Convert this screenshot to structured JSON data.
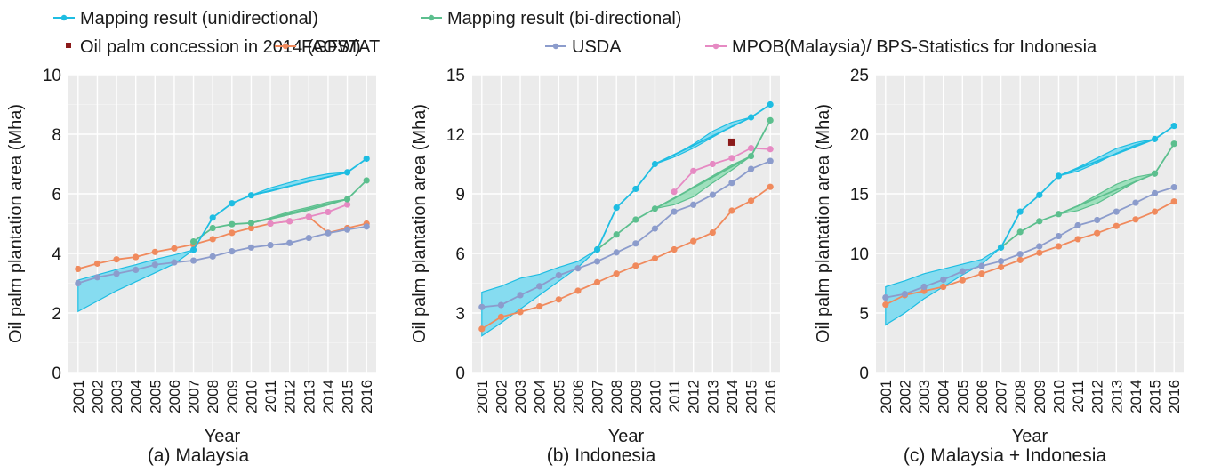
{
  "legend": {
    "items": [
      {
        "key": "map_uni",
        "label": "Mapping result (unidirectional)",
        "marker": "line",
        "color": "#1ebde2"
      },
      {
        "key": "map_bi",
        "label": "Mapping result (bi-directional)",
        "marker": "line",
        "color": "#5cbf8e"
      },
      {
        "key": "gfw",
        "label": "Oil palm concession in 2014 (GFW)",
        "marker": "square",
        "color": "#8b1a1a"
      },
      {
        "key": "faostat",
        "label": "FAOSTAT",
        "marker": "line",
        "color": "#f08a5d"
      },
      {
        "key": "usda",
        "label": "USDA",
        "marker": "line",
        "color": "#8c9ccc"
      },
      {
        "key": "mpob",
        "label": "MPOB(Malaysia)/ BPS-Statistics for Indonesia",
        "marker": "line",
        "color": "#e68ac3"
      }
    ]
  },
  "chart_data": [
    {
      "type": "line",
      "caption": "(a) Malaysia",
      "xlabel": "Year",
      "ylabel": "Oil palm plantation area (Mha)",
      "ylim": [
        0,
        10
      ],
      "yticks": [
        0,
        2,
        4,
        6,
        8,
        10
      ],
      "x": [
        "2001",
        "2002",
        "2003",
        "2004",
        "2005",
        "2006",
        "2007",
        "2008",
        "2009",
        "2010",
        "2011",
        "2012",
        "2013",
        "2014",
        "2015",
        "2016"
      ],
      "grid": true,
      "band_color": "#86dcf0",
      "band_bi_color": "#9fe0bd",
      "bands": [
        {
          "series": "map_uni",
          "x_from": "2001",
          "x_to": "2007",
          "upper": [
            3.1,
            3.28,
            3.46,
            3.62,
            3.8,
            3.95,
            4.12
          ],
          "lower": [
            2.05,
            2.4,
            2.75,
            3.05,
            3.35,
            3.65,
            4.12
          ]
        },
        {
          "series": "map_uni",
          "x_from": "2010",
          "x_to": "2015",
          "upper": [
            5.95,
            6.2,
            6.38,
            6.55,
            6.67,
            6.72
          ],
          "lower": [
            5.95,
            6.08,
            6.25,
            6.42,
            6.57,
            6.72
          ]
        },
        {
          "series": "map_bi",
          "x_from": "2010",
          "x_to": "2015",
          "upper": [
            5.02,
            5.2,
            5.4,
            5.55,
            5.72,
            5.82
          ],
          "lower": [
            5.02,
            5.15,
            5.3,
            5.45,
            5.62,
            5.82
          ]
        }
      ],
      "series": [
        {
          "key": "map_uni",
          "name": "Mapping result (unidirectional)",
          "points": [
            [
              "2007",
              4.12
            ],
            [
              "2008",
              5.2
            ],
            [
              "2009",
              5.68
            ],
            [
              "2010",
              5.95
            ],
            [
              "2015",
              6.72
            ],
            [
              "2016",
              7.18
            ]
          ]
        },
        {
          "key": "map_bi",
          "name": "Mapping result (bi-directional)",
          "points": [
            [
              "2007",
              4.4
            ],
            [
              "2008",
              4.85
            ],
            [
              "2009",
              4.98
            ],
            [
              "2010",
              5.02
            ],
            [
              "2015",
              5.82
            ],
            [
              "2016",
              6.45
            ]
          ]
        },
        {
          "key": "faostat",
          "name": "FAOSTAT",
          "points": [
            [
              "2001",
              3.48
            ],
            [
              "2002",
              3.66
            ],
            [
              "2003",
              3.8
            ],
            [
              "2004",
              3.88
            ],
            [
              "2005",
              4.05
            ],
            [
              "2006",
              4.17
            ],
            [
              "2007",
              4.3
            ],
            [
              "2008",
              4.48
            ],
            [
              "2009",
              4.69
            ],
            [
              "2010",
              4.85
            ],
            [
              "2011",
              5.0
            ],
            [
              "2012",
              5.08
            ],
            [
              "2013",
              5.23
            ],
            [
              "2014",
              4.69
            ],
            [
              "2015",
              4.85
            ],
            [
              "2016",
              5.0
            ]
          ]
        },
        {
          "key": "usda",
          "name": "USDA",
          "points": [
            [
              "2001",
              3.0
            ],
            [
              "2002",
              3.2
            ],
            [
              "2003",
              3.32
            ],
            [
              "2004",
              3.45
            ],
            [
              "2005",
              3.62
            ],
            [
              "2006",
              3.7
            ],
            [
              "2007",
              3.76
            ],
            [
              "2008",
              3.9
            ],
            [
              "2009",
              4.07
            ],
            [
              "2010",
              4.2
            ],
            [
              "2011",
              4.28
            ],
            [
              "2012",
              4.35
            ],
            [
              "2013",
              4.52
            ],
            [
              "2014",
              4.68
            ],
            [
              "2015",
              4.8
            ],
            [
              "2016",
              4.9
            ]
          ]
        },
        {
          "key": "mpob",
          "name": "MPOB(Malaysia)/ BPS-Statistics for Indonesia",
          "points": [
            [
              "2011",
              5.0
            ],
            [
              "2012",
              5.08
            ],
            [
              "2013",
              5.23
            ],
            [
              "2014",
              5.39
            ],
            [
              "2015",
              5.64
            ]
          ]
        }
      ]
    },
    {
      "type": "line",
      "caption": "(b) Indonesia",
      "xlabel": "Year",
      "ylabel": "Oil palm plantation area (Mha)",
      "ylim": [
        0,
        15
      ],
      "yticks": [
        0,
        3,
        6,
        9,
        12,
        15
      ],
      "x": [
        "2001",
        "2002",
        "2003",
        "2004",
        "2005",
        "2006",
        "2007",
        "2008",
        "2009",
        "2010",
        "2011",
        "2012",
        "2013",
        "2014",
        "2015",
        "2016"
      ],
      "grid": true,
      "band_color": "#86dcf0",
      "band_bi_color": "#9fe0bd",
      "bands": [
        {
          "series": "map_uni",
          "x_from": "2001",
          "x_to": "2007",
          "upper": [
            4.05,
            4.35,
            4.75,
            4.95,
            5.3,
            5.6,
            6.2
          ],
          "lower": [
            1.85,
            2.5,
            3.2,
            3.9,
            4.6,
            5.3,
            6.2
          ]
        },
        {
          "series": "map_uni",
          "x_from": "2010",
          "x_to": "2015",
          "upper": [
            10.5,
            10.95,
            11.5,
            12.15,
            12.6,
            12.85
          ],
          "lower": [
            10.5,
            10.85,
            11.3,
            11.85,
            12.4,
            12.85
          ]
        },
        {
          "series": "map_bi",
          "x_from": "2010",
          "x_to": "2015",
          "upper": [
            8.25,
            8.75,
            9.35,
            9.9,
            10.45,
            10.9
          ],
          "lower": [
            8.25,
            8.45,
            8.85,
            9.55,
            10.2,
            10.9
          ]
        }
      ],
      "series": [
        {
          "key": "map_uni",
          "name": "Mapping result (unidirectional)",
          "points": [
            [
              "2007",
              6.2
            ],
            [
              "2008",
              8.3
            ],
            [
              "2009",
              9.25
            ],
            [
              "2010",
              10.5
            ],
            [
              "2015",
              12.85
            ],
            [
              "2016",
              13.5
            ]
          ]
        },
        {
          "key": "map_bi",
          "name": "Mapping result (bi-directional)",
          "points": [
            [
              "2007",
              6.2
            ],
            [
              "2008",
              6.95
            ],
            [
              "2009",
              7.7
            ],
            [
              "2010",
              8.25
            ],
            [
              "2015",
              10.9
            ],
            [
              "2016",
              12.7
            ]
          ]
        },
        {
          "key": "faostat",
          "name": "FAOSTAT",
          "points": [
            [
              "2001",
              2.2
            ],
            [
              "2002",
              2.8
            ],
            [
              "2003",
              3.05
            ],
            [
              "2004",
              3.33
            ],
            [
              "2005",
              3.68
            ],
            [
              "2006",
              4.12
            ],
            [
              "2007",
              4.55
            ],
            [
              "2008",
              4.98
            ],
            [
              "2009",
              5.38
            ],
            [
              "2010",
              5.75
            ],
            [
              "2011",
              6.2
            ],
            [
              "2012",
              6.62
            ],
            [
              "2013",
              7.05
            ],
            [
              "2014",
              8.15
            ],
            [
              "2015",
              8.65
            ],
            [
              "2016",
              9.35
            ]
          ]
        },
        {
          "key": "usda",
          "name": "USDA",
          "points": [
            [
              "2001",
              3.3
            ],
            [
              "2002",
              3.4
            ],
            [
              "2003",
              3.9
            ],
            [
              "2004",
              4.35
            ],
            [
              "2005",
              4.9
            ],
            [
              "2006",
              5.25
            ],
            [
              "2007",
              5.6
            ],
            [
              "2008",
              6.05
            ],
            [
              "2009",
              6.5
            ],
            [
              "2010",
              7.25
            ],
            [
              "2011",
              8.1
            ],
            [
              "2012",
              8.45
            ],
            [
              "2013",
              8.95
            ],
            [
              "2014",
              9.55
            ],
            [
              "2015",
              10.25
            ],
            [
              "2016",
              10.65
            ]
          ]
        },
        {
          "key": "mpob",
          "name": "MPOB(Malaysia)/ BPS-Statistics for Indonesia",
          "points": [
            [
              "2011",
              9.1
            ],
            [
              "2012",
              10.15
            ],
            [
              "2013",
              10.5
            ],
            [
              "2014",
              10.8
            ],
            [
              "2015",
              11.3
            ],
            [
              "2016",
              11.25
            ]
          ]
        },
        {
          "key": "gfw",
          "name": "Oil palm concession in 2014 (GFW)",
          "points": [
            [
              "2014",
              11.6
            ]
          ]
        }
      ]
    },
    {
      "type": "line",
      "caption": "(c) Malaysia + Indonesia",
      "xlabel": "Year",
      "ylabel": "Oil palm plantation area (Mha)",
      "ylim": [
        0,
        25
      ],
      "yticks": [
        0,
        5,
        10,
        15,
        20,
        25
      ],
      "x": [
        "2001",
        "2002",
        "2003",
        "2004",
        "2005",
        "2006",
        "2007",
        "2008",
        "2009",
        "2010",
        "2011",
        "2012",
        "2013",
        "2014",
        "2015",
        "2016"
      ],
      "grid": true,
      "band_color": "#86dcf0",
      "band_bi_color": "#9fe0bd",
      "bands": [
        {
          "series": "map_uni",
          "x_from": "2001",
          "x_to": "2007",
          "upper": [
            7.2,
            7.7,
            8.3,
            8.7,
            9.1,
            9.5,
            10.5
          ],
          "lower": [
            4.0,
            5.0,
            6.2,
            7.2,
            8.2,
            9.1,
            10.5
          ]
        },
        {
          "series": "map_uni",
          "x_from": "2010",
          "x_to": "2015",
          "upper": [
            16.5,
            17.2,
            18.0,
            18.8,
            19.3,
            19.6
          ],
          "lower": [
            16.5,
            16.9,
            17.6,
            18.4,
            19.1,
            19.6
          ]
        },
        {
          "series": "map_bi",
          "x_from": "2010",
          "x_to": "2015",
          "upper": [
            13.3,
            14.0,
            14.9,
            15.8,
            16.4,
            16.7
          ],
          "lower": [
            13.3,
            13.6,
            14.2,
            15.1,
            16.0,
            16.7
          ]
        }
      ],
      "series": [
        {
          "key": "map_uni",
          "name": "Mapping result (unidirectional)",
          "points": [
            [
              "2007",
              10.5
            ],
            [
              "2008",
              13.5
            ],
            [
              "2009",
              14.9
            ],
            [
              "2010",
              16.5
            ],
            [
              "2015",
              19.6
            ],
            [
              "2016",
              20.7
            ]
          ]
        },
        {
          "key": "map_bi",
          "name": "Mapping result (bi-directional)",
          "points": [
            [
              "2007",
              10.5
            ],
            [
              "2008",
              11.8
            ],
            [
              "2009",
              12.7
            ],
            [
              "2010",
              13.3
            ],
            [
              "2015",
              16.7
            ],
            [
              "2016",
              19.2
            ]
          ]
        },
        {
          "key": "faostat",
          "name": "FAOSTAT",
          "points": [
            [
              "2001",
              5.7
            ],
            [
              "2002",
              6.5
            ],
            [
              "2003",
              6.85
            ],
            [
              "2004",
              7.2
            ],
            [
              "2005",
              7.75
            ],
            [
              "2006",
              8.3
            ],
            [
              "2007",
              8.85
            ],
            [
              "2008",
              9.45
            ],
            [
              "2009",
              10.05
            ],
            [
              "2010",
              10.6
            ],
            [
              "2011",
              11.2
            ],
            [
              "2012",
              11.7
            ],
            [
              "2013",
              12.3
            ],
            [
              "2014",
              12.85
            ],
            [
              "2015",
              13.5
            ],
            [
              "2016",
              14.35
            ]
          ]
        },
        {
          "key": "usda",
          "name": "USDA",
          "points": [
            [
              "2001",
              6.3
            ],
            [
              "2002",
              6.6
            ],
            [
              "2003",
              7.2
            ],
            [
              "2004",
              7.8
            ],
            [
              "2005",
              8.5
            ],
            [
              "2006",
              8.95
            ],
            [
              "2007",
              9.35
            ],
            [
              "2008",
              9.95
            ],
            [
              "2009",
              10.6
            ],
            [
              "2010",
              11.45
            ],
            [
              "2011",
              12.35
            ],
            [
              "2012",
              12.8
            ],
            [
              "2013",
              13.5
            ],
            [
              "2014",
              14.25
            ],
            [
              "2015",
              15.05
            ],
            [
              "2016",
              15.55
            ]
          ]
        }
      ]
    }
  ]
}
